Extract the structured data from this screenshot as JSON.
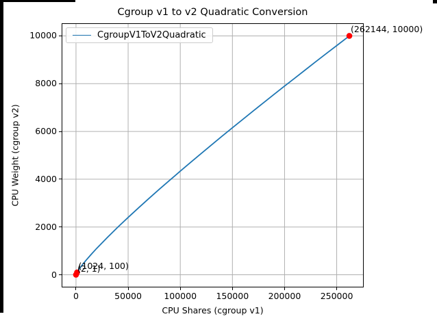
{
  "figure": {
    "title": "Cgroup v1 to v2 Quadratic Conversion",
    "xlabel": "CPU Shares (cgroup v1)",
    "ylabel": "CPU Weight (cgroup v2)"
  },
  "legend": {
    "label": "CgroupV1ToV2Quadratic"
  },
  "colors": {
    "line": "#1f77b4",
    "marker": "#ff0000",
    "grid": "#b0b0b0",
    "spine": "#000000",
    "legend_border": "#cccccc",
    "text": "#000000",
    "window_border": "#000000",
    "background": "#ffffff"
  },
  "chart_data": {
    "type": "line",
    "title": "Cgroup v1 to v2 Quadratic Conversion",
    "xlabel": "CPU Shares (cgroup v1)",
    "ylabel": "CPU Weight (cgroup v2)",
    "legend_position": "upper left",
    "grid": true,
    "xlim": [
      -13105,
      275251
    ],
    "ylim": [
      -500,
      10500
    ],
    "xticks": {
      "values": [
        0,
        50000,
        100000,
        150000,
        200000,
        250000
      ],
      "labels": [
        "0",
        "50000",
        "100000",
        "150000",
        "200000",
        "250000"
      ]
    },
    "yticks": {
      "values": [
        0,
        2000,
        4000,
        6000,
        8000,
        10000
      ],
      "labels": [
        "0",
        "2000",
        "4000",
        "6000",
        "8000",
        "10000"
      ]
    },
    "series": [
      {
        "name": "CgroupV1ToV2Quadratic",
        "color": "#1f77b4",
        "points": [
          [
            2,
            1
          ],
          [
            16,
            4
          ],
          [
            64,
            12
          ],
          [
            128,
            20
          ],
          [
            256,
            34
          ],
          [
            512,
            58
          ],
          [
            1024,
            100
          ],
          [
            2048,
            173
          ],
          [
            4096,
            302
          ],
          [
            6000,
            412
          ],
          [
            8192,
            532
          ],
          [
            10000,
            626
          ],
          [
            15000,
            875
          ],
          [
            20000,
            1112
          ],
          [
            30000,
            1561
          ],
          [
            40000,
            1989
          ],
          [
            50000,
            2402
          ],
          [
            60000,
            2804
          ],
          [
            70000,
            3198
          ],
          [
            80000,
            3584
          ],
          [
            90000,
            3964
          ],
          [
            100000,
            4338
          ],
          [
            110000,
            4708
          ],
          [
            120000,
            5075
          ],
          [
            130000,
            5439
          ],
          [
            140000,
            5798
          ],
          [
            150000,
            6155
          ],
          [
            160000,
            6508
          ],
          [
            170000,
            6860
          ],
          [
            180000,
            7208
          ],
          [
            190000,
            7554
          ],
          [
            200000,
            7898
          ],
          [
            210000,
            8241
          ],
          [
            220000,
            8582
          ],
          [
            230000,
            8921
          ],
          [
            240000,
            9259
          ],
          [
            250000,
            9594
          ],
          [
            262144,
            10000
          ]
        ]
      }
    ],
    "markers": {
      "color": "#ff0000",
      "radius": 4.3,
      "points": [
        [
          2,
          1
        ],
        [
          1024,
          100
        ],
        [
          262144,
          10000
        ]
      ]
    },
    "annotations": [
      {
        "x": 2,
        "y": 1,
        "label": "(2, 1)"
      },
      {
        "x": 1024,
        "y": 100,
        "label": "(1024, 100)"
      },
      {
        "x": 262144,
        "y": 10000,
        "label": "(262144, 10000)"
      }
    ]
  }
}
